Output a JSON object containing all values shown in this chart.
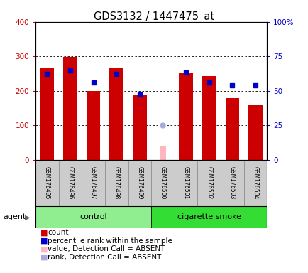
{
  "title": "GDS3132 / 1447475_at",
  "samples": [
    "GSM176495",
    "GSM176496",
    "GSM176497",
    "GSM176498",
    "GSM176499",
    "GSM176500",
    "GSM176501",
    "GSM176502",
    "GSM176503",
    "GSM176504"
  ],
  "counts": [
    265,
    298,
    200,
    268,
    190,
    null,
    252,
    242,
    178,
    160
  ],
  "percentile_ranks_pct": [
    62,
    65,
    56,
    62,
    47,
    null,
    63,
    56,
    54,
    54
  ],
  "absent_value": [
    null,
    null,
    null,
    null,
    null,
    40,
    null,
    null,
    null,
    null
  ],
  "absent_rank_pct": [
    null,
    null,
    null,
    null,
    null,
    25,
    null,
    null,
    null,
    null
  ],
  "groups": [
    {
      "label": "control",
      "color": "#90EE90",
      "indices": [
        0,
        1,
        2,
        3,
        4
      ]
    },
    {
      "label": "cigarette smoke",
      "color": "#33DD33",
      "indices": [
        5,
        6,
        7,
        8,
        9
      ]
    }
  ],
  "ylim_left": [
    0,
    400
  ],
  "ylim_right": [
    0,
    100
  ],
  "yticks_left": [
    0,
    100,
    200,
    300,
    400
  ],
  "yticks_right": [
    0,
    25,
    50,
    75,
    100
  ],
  "yticklabels_right": [
    "0",
    "25",
    "50",
    "75",
    "100%"
  ],
  "bar_color": "#CC0000",
  "blue_color": "#0000CC",
  "absent_bar_color": "#FFB6C1",
  "absent_dot_color": "#AAAADD",
  "tick_label_color_left": "#CC0000",
  "tick_label_color_right": "#0000CC",
  "agent_label": "agent",
  "legend_entries": [
    {
      "color": "#CC0000",
      "label": "count"
    },
    {
      "color": "#0000CC",
      "label": "percentile rank within the sample"
    },
    {
      "color": "#FFB6C1",
      "label": "value, Detection Call = ABSENT"
    },
    {
      "color": "#AAAADD",
      "label": "rank, Detection Call = ABSENT"
    }
  ]
}
